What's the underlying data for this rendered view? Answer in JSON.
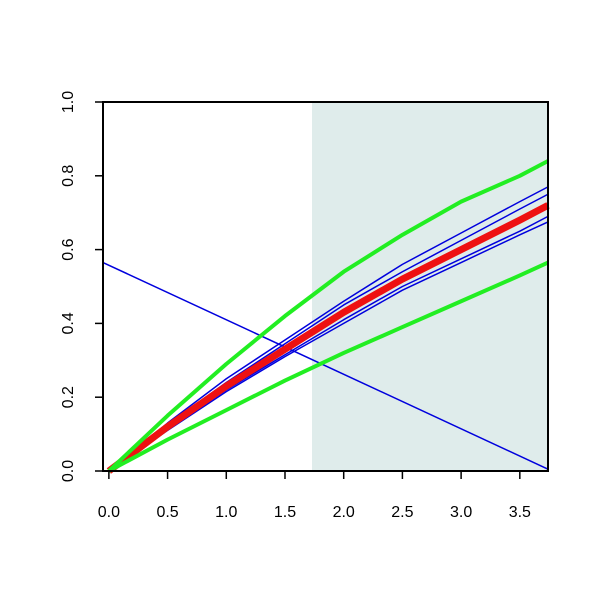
{
  "chart_data": {
    "type": "line",
    "x": [
      0,
      0.5,
      1,
      1.5,
      2,
      2.5,
      3,
      3.5,
      3.74
    ],
    "xlim": [
      -0.05,
      3.74
    ],
    "ylim": [
      0,
      1
    ],
    "xticks": [
      {
        "value": 0,
        "label": "0.0"
      },
      0.5,
      {
        "value": 1,
        "label": "1.0"
      },
      1.5,
      {
        "value": 2,
        "label": "2.0"
      },
      2.5,
      {
        "value": 3,
        "label": "3.0"
      },
      3.5
    ],
    "yticks": [
      {
        "value": 0,
        "label": "0.0"
      },
      0.2,
      0.4,
      0.6,
      0.8,
      {
        "value": 1,
        "label": "1.0"
      }
    ],
    "shade": {
      "x": [
        1.73,
        3.74
      ],
      "color": "#dfeceb"
    },
    "series": [
      {
        "color": "#0000dd",
        "width": 1.5,
        "x": [
          -0.05,
          3.74
        ],
        "values": [
          0.565,
          0.005
        ]
      },
      {
        "color": "#0000dd",
        "width": 1.5,
        "values": [
          0,
          0.13,
          0.25,
          0.355,
          0.46,
          0.56,
          0.645,
          0.73,
          0.77
        ]
      },
      {
        "color": "#0000dd",
        "width": 1.5,
        "values": [
          0,
          0.125,
          0.24,
          0.345,
          0.45,
          0.54,
          0.625,
          0.71,
          0.75
        ]
      },
      {
        "color": "#0000dd",
        "width": 1.5,
        "values": [
          0,
          0.115,
          0.22,
          0.315,
          0.41,
          0.5,
          0.575,
          0.65,
          0.69
        ]
      },
      {
        "color": "#0000dd",
        "width": 1.5,
        "values": [
          0,
          0.11,
          0.215,
          0.31,
          0.4,
          0.49,
          0.565,
          0.64,
          0.675
        ]
      },
      {
        "color": "#ee1111",
        "width": 7,
        "values": [
          0,
          0.12,
          0.23,
          0.33,
          0.43,
          0.52,
          0.6,
          0.68,
          0.72
        ]
      },
      {
        "color": "#22ee22",
        "width": 4,
        "values": [
          0,
          0.15,
          0.29,
          0.42,
          0.54,
          0.64,
          0.73,
          0.8,
          0.84
        ]
      },
      {
        "color": "#22ee22",
        "width": 4,
        "values": [
          0,
          0.085,
          0.165,
          0.245,
          0.32,
          0.39,
          0.46,
          0.53,
          0.565
        ]
      }
    ]
  }
}
